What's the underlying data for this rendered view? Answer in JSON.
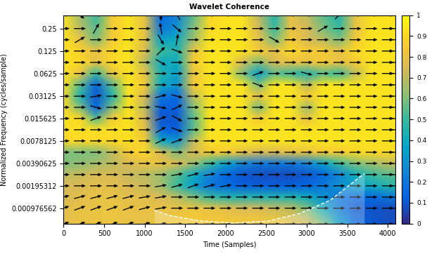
{
  "chart_data": {
    "type": "heatmap",
    "title": "Wavelet Coherence",
    "x_label": "Time (Samples)",
    "y_label": "Normalized Frequency (cycles/sample)",
    "log": "y",
    "grid": false,
    "xlim": [
      0,
      4090
    ],
    "ylim": [
      0.00061,
      0.377
    ],
    "xticks": [
      0,
      500,
      1000,
      1500,
      2000,
      2500,
      3000,
      3500,
      4000
    ],
    "yticks": [
      {
        "value": 0.0009765625,
        "label": "0.000976562"
      },
      {
        "value": 0.001953125,
        "label": "0.00195312"
      },
      0.00390625,
      0.0078125,
      0.015625,
      0.03125,
      0.0625,
      0.125,
      0.25
    ],
    "x": [
      0,
      200,
      400,
      600,
      800,
      1000,
      1200,
      1400,
      1600,
      1800,
      2000,
      2200,
      2400,
      2600,
      2800,
      3000,
      3200,
      3400,
      3600,
      3800,
      4000,
      4090
    ],
    "y": [
      0.0006,
      0.00098,
      0.00138,
      0.00195,
      0.00276,
      0.0039,
      0.0055,
      0.0078,
      0.011,
      0.0156,
      0.022,
      0.031,
      0.044,
      0.0625,
      0.088,
      0.125,
      0.177,
      0.25,
      0.38
    ],
    "cells": [
      [
        0.8,
        0.8,
        0.82,
        0.82,
        0.8,
        0.8,
        0.82,
        0.85,
        0.85,
        0.85,
        0.85,
        0.85,
        0.85,
        0.85,
        0.8,
        0.75,
        0.6,
        0.35,
        0.15,
        0.1,
        0.08,
        0.08
      ],
      [
        0.78,
        0.8,
        0.8,
        0.82,
        0.8,
        0.8,
        0.8,
        0.8,
        0.82,
        0.8,
        0.78,
        0.75,
        0.75,
        0.72,
        0.7,
        0.6,
        0.4,
        0.2,
        0.1,
        0.1,
        0.08,
        0.08
      ],
      [
        0.75,
        0.78,
        0.8,
        0.8,
        0.78,
        0.78,
        0.75,
        0.7,
        0.6,
        0.5,
        0.45,
        0.45,
        0.45,
        0.45,
        0.45,
        0.4,
        0.3,
        0.2,
        0.15,
        0.15,
        0.2,
        0.2
      ],
      [
        0.75,
        0.75,
        0.78,
        0.78,
        0.75,
        0.72,
        0.65,
        0.5,
        0.35,
        0.2,
        0.15,
        0.12,
        0.12,
        0.12,
        0.12,
        0.15,
        0.2,
        0.3,
        0.35,
        0.4,
        0.45,
        0.45
      ],
      [
        0.7,
        0.72,
        0.75,
        0.75,
        0.72,
        0.7,
        0.65,
        0.55,
        0.4,
        0.25,
        0.15,
        0.1,
        0.08,
        0.08,
        0.08,
        0.1,
        0.15,
        0.25,
        0.4,
        0.5,
        0.55,
        0.55
      ],
      [
        0.6,
        0.62,
        0.65,
        0.7,
        0.75,
        0.8,
        0.8,
        0.75,
        0.65,
        0.5,
        0.35,
        0.25,
        0.2,
        0.2,
        0.2,
        0.25,
        0.35,
        0.5,
        0.6,
        0.65,
        0.7,
        0.7
      ],
      [
        0.6,
        0.6,
        0.6,
        0.7,
        0.85,
        0.9,
        0.75,
        0.6,
        0.75,
        0.85,
        0.85,
        0.8,
        0.75,
        0.75,
        0.8,
        0.8,
        0.85,
        0.85,
        0.9,
        0.9,
        0.9,
        0.9
      ],
      [
        0.9,
        0.9,
        0.9,
        0.9,
        0.92,
        0.85,
        0.4,
        0.3,
        0.7,
        0.92,
        0.93,
        0.93,
        0.93,
        0.93,
        0.93,
        0.93,
        0.93,
        0.93,
        0.93,
        0.93,
        0.93,
        0.93
      ],
      [
        0.92,
        0.92,
        0.92,
        0.92,
        0.93,
        0.8,
        0.15,
        0.12,
        0.55,
        0.93,
        0.93,
        0.93,
        0.93,
        0.93,
        0.93,
        0.93,
        0.93,
        0.93,
        0.93,
        0.93,
        0.93,
        0.93
      ],
      [
        0.93,
        0.9,
        0.55,
        0.85,
        0.93,
        0.75,
        0.1,
        0.1,
        0.55,
        0.93,
        0.93,
        0.93,
        0.85,
        0.93,
        0.93,
        0.8,
        0.93,
        0.93,
        0.93,
        0.93,
        0.93,
        0.93
      ],
      [
        0.9,
        0.6,
        0.15,
        0.6,
        0.93,
        0.7,
        0.12,
        0.12,
        0.6,
        0.93,
        0.93,
        0.93,
        0.6,
        0.93,
        0.93,
        0.65,
        0.93,
        0.93,
        0.93,
        0.93,
        0.93,
        0.93
      ],
      [
        0.9,
        0.45,
        0.1,
        0.45,
        0.93,
        0.75,
        0.2,
        0.15,
        0.7,
        0.93,
        0.93,
        0.93,
        0.8,
        0.93,
        0.93,
        0.85,
        0.93,
        0.93,
        0.93,
        0.93,
        0.93,
        0.93
      ],
      [
        0.93,
        0.55,
        0.15,
        0.55,
        0.93,
        0.85,
        0.4,
        0.3,
        0.85,
        0.93,
        0.93,
        0.93,
        0.6,
        0.93,
        0.93,
        0.7,
        0.93,
        0.93,
        0.93,
        0.93,
        0.93,
        0.93
      ],
      [
        0.93,
        0.8,
        0.5,
        0.8,
        0.93,
        0.8,
        0.45,
        0.35,
        0.8,
        0.93,
        0.93,
        0.6,
        0.35,
        0.55,
        0.5,
        0.45,
        0.55,
        0.5,
        0.7,
        0.93,
        0.93,
        0.93
      ],
      [
        0.93,
        0.9,
        0.8,
        0.9,
        0.93,
        0.7,
        0.4,
        0.4,
        0.85,
        0.93,
        0.93,
        0.75,
        0.6,
        0.75,
        0.8,
        0.8,
        0.85,
        0.8,
        0.85,
        0.93,
        0.93,
        0.93
      ],
      [
        0.93,
        0.88,
        0.8,
        0.9,
        0.93,
        0.75,
        0.5,
        0.45,
        0.8,
        0.93,
        0.93,
        0.93,
        0.85,
        0.8,
        0.9,
        0.85,
        0.85,
        0.8,
        0.9,
        0.93,
        0.93,
        0.93
      ],
      [
        0.93,
        0.8,
        0.6,
        0.85,
        0.93,
        0.8,
        0.35,
        0.4,
        0.65,
        0.93,
        0.93,
        0.93,
        0.8,
        0.6,
        0.85,
        0.75,
        0.7,
        0.6,
        0.85,
        0.93,
        0.93,
        0.93
      ],
      [
        0.93,
        0.7,
        0.55,
        0.85,
        0.93,
        0.8,
        0.2,
        0.3,
        0.6,
        0.9,
        0.93,
        0.93,
        0.75,
        0.5,
        0.8,
        0.75,
        0.6,
        0.5,
        0.8,
        0.93,
        0.93,
        0.93
      ],
      [
        0.93,
        0.65,
        0.5,
        0.85,
        0.93,
        0.8,
        0.15,
        0.25,
        0.55,
        0.9,
        0.93,
        0.93,
        0.7,
        0.45,
        0.8,
        0.7,
        0.55,
        0.45,
        0.8,
        0.93,
        0.93,
        0.93
      ]
    ],
    "phase_deg": [
      [
        20,
        20,
        20,
        20,
        20,
        15,
        10,
        0,
        0,
        0,
        0,
        0,
        0,
        0,
        0,
        0,
        0,
        0,
        0,
        0,
        0,
        0
      ],
      [
        20,
        20,
        20,
        20,
        20,
        15,
        10,
        0,
        0,
        0,
        0,
        0,
        0,
        0,
        0,
        0,
        0,
        0,
        0,
        0,
        0,
        0
      ],
      [
        15,
        15,
        15,
        15,
        15,
        10,
        10,
        0,
        0,
        0,
        0,
        0,
        0,
        0,
        0,
        0,
        0,
        0,
        0,
        0,
        0,
        0
      ],
      [
        0,
        0,
        0,
        0,
        0,
        0,
        10,
        15,
        20,
        15,
        10,
        0,
        0,
        0,
        0,
        0,
        0,
        0,
        0,
        0,
        0,
        0
      ],
      [
        0,
        0,
        0,
        0,
        0,
        0,
        0,
        10,
        15,
        10,
        0,
        0,
        0,
        0,
        0,
        0,
        0,
        0,
        0,
        0,
        0,
        0
      ],
      [
        0,
        0,
        0,
        0,
        0,
        0,
        0,
        0,
        0,
        0,
        0,
        0,
        0,
        0,
        0,
        0,
        0,
        0,
        0,
        0,
        0,
        0
      ],
      [
        0,
        0,
        0,
        0,
        0,
        0,
        0,
        0,
        0,
        0,
        0,
        0,
        0,
        0,
        0,
        0,
        0,
        0,
        0,
        0,
        0,
        0
      ],
      [
        0,
        0,
        0,
        0,
        0,
        0,
        25,
        20,
        0,
        0,
        0,
        0,
        0,
        0,
        0,
        0,
        0,
        0,
        0,
        0,
        0,
        0
      ],
      [
        0,
        0,
        0,
        0,
        0,
        0,
        30,
        -20,
        0,
        0,
        0,
        0,
        0,
        0,
        0,
        0,
        0,
        0,
        0,
        0,
        0,
        0
      ],
      [
        0,
        0,
        20,
        0,
        0,
        0,
        20,
        -30,
        0,
        0,
        0,
        0,
        0,
        0,
        0,
        0,
        0,
        0,
        0,
        0,
        0,
        0
      ],
      [
        0,
        0,
        -15,
        0,
        0,
        0,
        -10,
        25,
        0,
        0,
        0,
        0,
        0,
        0,
        0,
        0,
        0,
        0,
        0,
        0,
        0,
        0
      ],
      [
        0,
        0,
        10,
        0,
        0,
        0,
        15,
        -15,
        0,
        0,
        0,
        0,
        0,
        0,
        0,
        0,
        0,
        0,
        0,
        0,
        0,
        0
      ],
      [
        0,
        0,
        0,
        0,
        0,
        0,
        0,
        0,
        0,
        0,
        0,
        0,
        -20,
        0,
        0,
        0,
        0,
        0,
        0,
        0,
        0,
        0
      ],
      [
        0,
        0,
        0,
        0,
        0,
        0,
        0,
        0,
        0,
        0,
        0,
        0,
        20,
        0,
        0,
        -15,
        0,
        0,
        0,
        0,
        0,
        0
      ],
      [
        0,
        0,
        0,
        0,
        0,
        0,
        -30,
        0,
        0,
        0,
        0,
        0,
        0,
        0,
        0,
        0,
        0,
        0,
        0,
        0,
        0,
        0
      ],
      [
        0,
        0,
        0,
        0,
        0,
        0,
        45,
        -20,
        0,
        0,
        0,
        0,
        0,
        0,
        0,
        0,
        0,
        0,
        0,
        0,
        0,
        0
      ],
      [
        0,
        30,
        0,
        0,
        0,
        0,
        -60,
        80,
        0,
        0,
        0,
        0,
        0,
        -30,
        0,
        0,
        0,
        0,
        0,
        0,
        0,
        0
      ],
      [
        0,
        0,
        60,
        0,
        0,
        0,
        100,
        -40,
        0,
        0,
        0,
        0,
        0,
        0,
        0,
        0,
        30,
        0,
        0,
        0,
        0,
        0
      ],
      [
        0,
        -40,
        0,
        0,
        0,
        0,
        -90,
        120,
        0,
        0,
        0,
        0,
        0,
        0,
        0,
        0,
        0,
        45,
        0,
        0,
        0,
        0
      ]
    ],
    "coi": {
      "x": [
        1120,
        1310,
        1690,
        2110,
        2530,
        2910,
        3290,
        3600,
        3710
      ],
      "y": [
        0.00092,
        0.00078,
        0.00066,
        0.00062,
        0.00066,
        0.00083,
        0.00125,
        0.0023,
        0.00284
      ]
    },
    "colorbar_range": [
      0,
      1
    ],
    "colorbar_ticks": [
      0,
      0.1,
      0.2,
      0.3,
      0.4,
      0.5,
      0.6,
      0.7,
      0.8,
      0.9,
      1
    ]
  }
}
